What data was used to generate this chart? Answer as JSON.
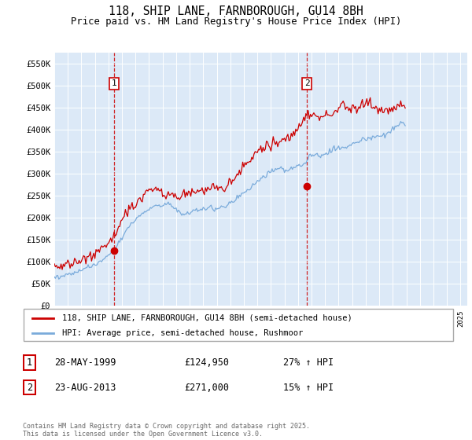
{
  "title": "118, SHIP LANE, FARNBOROUGH, GU14 8BH",
  "subtitle": "Price paid vs. HM Land Registry's House Price Index (HPI)",
  "plot_bg": "#dce9f7",
  "ylim": [
    0,
    575000
  ],
  "yticks": [
    0,
    50000,
    100000,
    150000,
    200000,
    250000,
    300000,
    350000,
    400000,
    450000,
    500000,
    550000
  ],
  "ytick_labels": [
    "£0",
    "£50K",
    "£100K",
    "£150K",
    "£200K",
    "£250K",
    "£300K",
    "£350K",
    "£400K",
    "£450K",
    "£500K",
    "£550K"
  ],
  "xlim_start": 1995.0,
  "xlim_end": 2025.5,
  "red_color": "#cc0000",
  "blue_color": "#7aabdb",
  "sale1_year": 1999.41,
  "sale1_price": 124950,
  "sale2_year": 2013.65,
  "sale2_price": 271000,
  "legend_label_red": "118, SHIP LANE, FARNBOROUGH, GU14 8BH (semi-detached house)",
  "legend_label_blue": "HPI: Average price, semi-detached house, Rushmoor",
  "annotation1_label": "1",
  "annotation2_label": "2",
  "table_rows": [
    {
      "num": "1",
      "date": "28-MAY-1999",
      "price": "£124,950",
      "change": "27% ↑ HPI"
    },
    {
      "num": "2",
      "date": "23-AUG-2013",
      "price": "£271,000",
      "change": "15% ↑ HPI"
    }
  ],
  "footer": "Contains HM Land Registry data © Crown copyright and database right 2025.\nThis data is licensed under the Open Government Licence v3.0.",
  "hpi_monthly": [
    65000,
    65500,
    66000,
    66200,
    66500,
    67000,
    67500,
    68000,
    68500,
    69000,
    69500,
    70000,
    70500,
    71000,
    71800,
    72500,
    73200,
    74000,
    75000,
    76000,
    77000,
    78000,
    79000,
    80000,
    81000,
    82000,
    83000,
    84000,
    85000,
    86000,
    87000,
    88000,
    89000,
    90000,
    91000,
    92000,
    93000,
    94500,
    96000,
    97500,
    99000,
    100500,
    102000,
    104000,
    106000,
    108000,
    110000,
    112000,
    114000,
    116000,
    119000,
    122000,
    125000,
    128000,
    131000,
    135000,
    139000,
    143000,
    147000,
    151000,
    155000,
    159000,
    163000,
    167000,
    171000,
    175000,
    179000,
    183000,
    186000,
    189000,
    192000,
    195000,
    197000,
    199000,
    201000,
    203000,
    205000,
    207000,
    209000,
    211000,
    213000,
    215000,
    217000,
    219000,
    221000,
    222000,
    223000,
    224000,
    225000,
    226000,
    227000,
    228000,
    229000,
    229500,
    230000,
    230500,
    231000,
    231500,
    232000,
    232500,
    233000,
    232000,
    231000,
    230000,
    228000,
    226000,
    224000,
    222000,
    220000,
    218000,
    216000,
    214000,
    212000,
    210000,
    209000,
    208000,
    208000,
    208500,
    209000,
    210000,
    211000,
    212000,
    213000,
    214000,
    215000,
    216000,
    217000,
    218000,
    219000,
    220000,
    221000,
    221500,
    222000,
    222000,
    222000,
    222000,
    221500,
    221000,
    220500,
    220000,
    220000,
    220500,
    221000,
    221500,
    222000,
    222500,
    223000,
    223500,
    224000,
    225000,
    226000,
    227000,
    228000,
    229000,
    230000,
    231000,
    233000,
    235000,
    237000,
    239000,
    241000,
    243000,
    245000,
    247000,
    249000,
    251000,
    253000,
    255000,
    257000,
    259000,
    261000,
    263000,
    265000,
    267000,
    269000,
    271000,
    273000,
    275000,
    277000,
    279000,
    281000,
    283000,
    285000,
    287000,
    289000,
    291000,
    293000,
    295000,
    297000,
    299000,
    301000,
    303000,
    305000,
    307000,
    308000,
    309000,
    310000,
    311000,
    312000,
    312000,
    312000,
    312000,
    311000,
    310000,
    309000,
    309000,
    309500,
    310000,
    311000,
    312000,
    313000,
    314000,
    315000,
    315500,
    316000,
    316500,
    317000,
    317500,
    318000,
    319000,
    320000,
    322000,
    324000,
    327000,
    330000,
    333000,
    336000,
    339000,
    342000,
    344000,
    345000,
    345000,
    344000,
    343000,
    342000,
    342000,
    343000,
    344000,
    345000,
    346000,
    347000,
    348000,
    349000,
    350000,
    351000,
    352000,
    353000,
    354000,
    355000,
    356000,
    357000,
    358000,
    358000,
    358000,
    358000,
    358500,
    359000,
    360000,
    361000,
    362000,
    363000,
    364000,
    365000,
    366000,
    367000,
    368000,
    369000,
    370000,
    371000,
    372000,
    373000,
    374000,
    375000,
    376000,
    377000,
    378000,
    378500,
    379000,
    379500,
    380000,
    381000,
    382000,
    383000,
    384000,
    385000,
    385500,
    386000,
    386000,
    386000,
    386000,
    386000,
    387000,
    388000,
    389000,
    390000,
    392000,
    394000,
    396000,
    398000,
    400000,
    402000,
    404000,
    406000,
    408000,
    410000,
    412000,
    414000,
    415000,
    414000,
    412000,
    410000,
    408000
  ],
  "prop_monthly": [
    85000,
    86000,
    87000,
    87500,
    88000,
    88500,
    89000,
    89500,
    90000,
    90500,
    91000,
    92000,
    93000,
    94000,
    95000,
    96000,
    97000,
    98000,
    99000,
    100000,
    101000,
    102000,
    103000,
    104000,
    105000,
    106000,
    107000,
    108000,
    109000,
    110000,
    111000,
    112000,
    113000,
    114000,
    115000,
    116000,
    117000,
    119000,
    121000,
    123000,
    125000,
    127500,
    130000,
    132000,
    134000,
    136000,
    138000,
    141000,
    143000,
    145000,
    148000,
    151000,
    155000,
    159000,
    163000,
    167000,
    171000,
    175000,
    180000,
    185000,
    190000,
    195000,
    200000,
    205000,
    210000,
    215000,
    219000,
    222000,
    225000,
    227000,
    229000,
    231000,
    233000,
    235000,
    238000,
    241000,
    244000,
    247000,
    250000,
    253000,
    256000,
    258000,
    259000,
    260000,
    261000,
    262000,
    263000,
    264000,
    264500,
    265000,
    265000,
    264500,
    264000,
    263000,
    262000,
    261000,
    260000,
    259000,
    258000,
    257000,
    256000,
    255000,
    253000,
    251000,
    249000,
    248000,
    247000,
    247000,
    247500,
    248000,
    249000,
    250000,
    251000,
    252000,
    253000,
    254000,
    255000,
    256000,
    257000,
    258000,
    259000,
    260000,
    261000,
    262000,
    262500,
    262000,
    261500,
    261000,
    260500,
    260000,
    260000,
    260500,
    261000,
    261500,
    262000,
    262500,
    263000,
    263500,
    264000,
    264500,
    265000,
    265500,
    266000,
    266500,
    267000,
    267500,
    268000,
    268500,
    269000,
    270000,
    271000,
    272000,
    273000,
    274000,
    276000,
    278000,
    280000,
    282000,
    284000,
    287000,
    290000,
    293000,
    296000,
    299000,
    302000,
    305000,
    308000,
    311000,
    314000,
    317000,
    320000,
    323000,
    326000,
    329000,
    332000,
    335000,
    338000,
    341000,
    344000,
    347000,
    350000,
    353000,
    356000,
    358000,
    360000,
    362000,
    364000,
    365000,
    366000,
    367000,
    368000,
    369000,
    369500,
    370000,
    370000,
    370000,
    370000,
    370500,
    371000,
    372000,
    373000,
    374000,
    375000,
    376000,
    377000,
    378000,
    379000,
    380000,
    381000,
    382000,
    384000,
    386000,
    388000,
    390000,
    393000,
    396000,
    400000,
    405000,
    410000,
    416000,
    421000,
    426000,
    430000,
    433000,
    435000,
    437000,
    439000,
    440000,
    440000,
    439000,
    437000,
    435000,
    433000,
    431000,
    429000,
    427000,
    426000,
    426000,
    427000,
    428000,
    430000,
    432000,
    434000,
    436000,
    437000,
    438000,
    439000,
    440000,
    441000,
    442000,
    443000,
    444000,
    445000,
    446000,
    460000,
    465000,
    462000,
    458000,
    455000,
    452000,
    450000,
    449000,
    448000,
    447000,
    448000,
    449000,
    450000,
    451000,
    452000,
    453000,
    454000,
    455000,
    456000,
    457000,
    458000,
    459000,
    460000,
    461000,
    462000,
    463000,
    462000,
    460000,
    457000,
    454000,
    451000,
    449000,
    448000,
    447000,
    446000,
    445000,
    444000,
    443000,
    443000,
    443500,
    444000,
    445000,
    446000,
    447000,
    448000,
    449000,
    450000,
    451000,
    452000,
    453000,
    454000,
    455000,
    456000,
    457000,
    456000,
    455000,
    454000,
    453000
  ]
}
